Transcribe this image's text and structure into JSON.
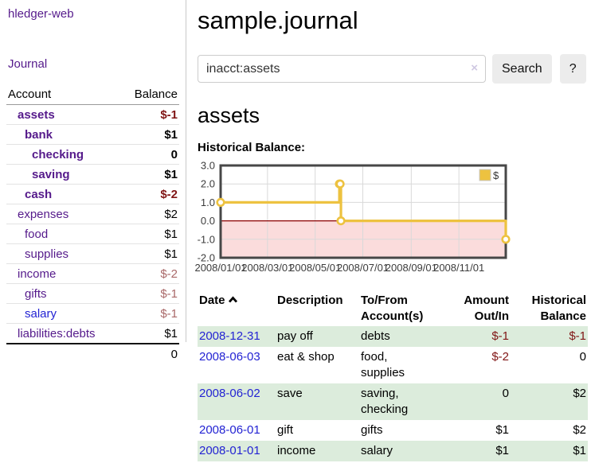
{
  "app_title": "hledger-web",
  "sidebar": {
    "journal_link": "Journal",
    "table_headers": {
      "account": "Account",
      "balance": "Balance"
    },
    "accounts": [
      {
        "name": "assets",
        "balance": "$-1",
        "depth": 0,
        "bold": true,
        "name_color": "purple",
        "balance_color": "negative-strong"
      },
      {
        "name": "bank",
        "balance": "$1",
        "depth": 1,
        "bold": true,
        "name_color": "purple",
        "balance_color": "normal"
      },
      {
        "name": "checking",
        "balance": "0",
        "depth": 2,
        "bold": true,
        "name_color": "purple",
        "balance_color": "normal"
      },
      {
        "name": "saving",
        "balance": "$1",
        "depth": 2,
        "bold": true,
        "name_color": "purple",
        "balance_color": "normal"
      },
      {
        "name": "cash",
        "balance": "$-2",
        "depth": 1,
        "bold": true,
        "name_color": "purple",
        "balance_color": "negative-strong"
      },
      {
        "name": "expenses",
        "balance": "$2",
        "depth": 0,
        "bold": false,
        "name_color": "purple",
        "balance_color": "normal"
      },
      {
        "name": "food",
        "balance": "$1",
        "depth": 1,
        "bold": false,
        "name_color": "purple",
        "balance_color": "normal"
      },
      {
        "name": "supplies",
        "balance": "$1",
        "depth": 1,
        "bold": false,
        "name_color": "purple",
        "balance_color": "normal"
      },
      {
        "name": "income",
        "balance": "$-2",
        "depth": 0,
        "bold": false,
        "name_color": "purple",
        "balance_color": "negative-muted"
      },
      {
        "name": "gifts",
        "balance": "$-1",
        "depth": 1,
        "bold": false,
        "name_color": "purple",
        "balance_color": "negative-muted"
      },
      {
        "name": "salary",
        "balance": "$-1",
        "depth": 1,
        "bold": false,
        "name_color": "blue",
        "balance_color": "negative-muted"
      },
      {
        "name": "liabilities:debts",
        "balance": "$1",
        "depth": 0,
        "bold": false,
        "name_color": "purple",
        "balance_color": "normal"
      }
    ],
    "total": "0"
  },
  "main": {
    "title": "sample.journal",
    "search": {
      "value": "inacct:assets",
      "clear_label": "×",
      "search_button": "Search",
      "help_button": "?"
    },
    "account_heading": "assets",
    "chart_heading": "Historical Balance:",
    "register": {
      "headers": {
        "date": "Date",
        "sort_icon": "chevron-up",
        "description": "Description",
        "account_lines": [
          "To/From",
          "Account(s)"
        ],
        "amount_lines": [
          "Amount",
          "Out/In"
        ],
        "balance_lines": [
          "Historical",
          "Balance"
        ]
      },
      "rows": [
        {
          "date": "2008-12-31",
          "description": "pay off",
          "accounts": "debts",
          "amount": "$-1",
          "amount_negative": true,
          "balance": "$-1",
          "balance_negative": true,
          "shaded": true
        },
        {
          "date": "2008-06-03",
          "description": "eat & shop",
          "accounts": "food, supplies",
          "amount": "$-2",
          "amount_negative": true,
          "balance": "0",
          "balance_negative": false,
          "shaded": false
        },
        {
          "date": "2008-06-02",
          "description": "save",
          "accounts": "saving, checking",
          "amount": "0",
          "amount_negative": false,
          "balance": "$2",
          "balance_negative": false,
          "shaded": true
        },
        {
          "date": "2008-06-01",
          "description": "gift",
          "accounts": "gifts",
          "amount": "$1",
          "amount_negative": false,
          "balance": "$2",
          "balance_negative": false,
          "shaded": false
        },
        {
          "date": "2008-01-01",
          "description": "income",
          "accounts": "salary",
          "amount": "$1",
          "amount_negative": false,
          "balance": "$1",
          "balance_negative": false,
          "shaded": true
        }
      ]
    }
  },
  "colors": {
    "link_purple": "#551a8b",
    "link_blue": "#2323d3",
    "negative_strong": "#801515",
    "negative_muted": "#a96868",
    "row_stripe_green": "#dcecdc",
    "series_gold": "#EDC240",
    "chart_negative_fill": "#fbdcdc",
    "zero_line": "#8b0000",
    "chart_border": "#474747",
    "gridline": "#d9d9d9"
  },
  "chart_data": {
    "type": "line",
    "line_style": "step-with-markers",
    "title": "Historical Balance:",
    "legend": [
      {
        "label": "$",
        "color": "#EDC240",
        "position": "top-right"
      }
    ],
    "x": [
      "2008-01-01",
      "2008-06-01",
      "2008-06-02",
      "2008-06-03",
      "2008-12-31"
    ],
    "series": [
      {
        "name": "$",
        "values": [
          1,
          2,
          2,
          0,
          -1
        ]
      }
    ],
    "xlim": [
      "2008-01-01",
      "2008-12-31"
    ],
    "ylim": [
      -2,
      3
    ],
    "yticks": [
      "3.0",
      "2.0",
      "1.0",
      "0.0",
      "-1.0",
      "-2.0"
    ],
    "xticks": [
      "2008/01/01",
      "2008/03/01",
      "2008/05/01",
      "2008/07/01",
      "2008/09/01",
      "2008/11/01"
    ],
    "grid": true
  }
}
